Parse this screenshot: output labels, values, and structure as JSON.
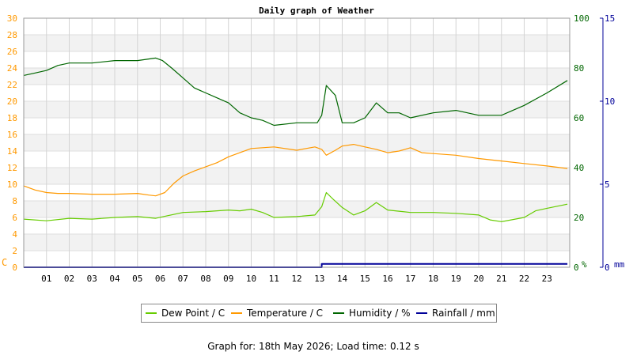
{
  "chart_data": {
    "type": "line",
    "title": "Daily graph of Weather",
    "xlabel": "",
    "x_ticks": [
      "01",
      "02",
      "03",
      "04",
      "05",
      "06",
      "07",
      "08",
      "09",
      "10",
      "11",
      "12",
      "13",
      "14",
      "15",
      "16",
      "17",
      "18",
      "19",
      "20",
      "21",
      "22",
      "23"
    ],
    "xlim": [
      0,
      24
    ],
    "axes": {
      "left": {
        "unit": "C",
        "ylim": [
          0,
          30
        ],
        "ticks": [
          0,
          2,
          4,
          6,
          8,
          10,
          12,
          14,
          16,
          18,
          20,
          22,
          24,
          26,
          28,
          30
        ],
        "color": "#ff9900"
      },
      "humidity": {
        "unit": "%",
        "ylim": [
          0,
          100
        ],
        "ticks": [
          0,
          20,
          40,
          60,
          80,
          100
        ],
        "color": "#006600"
      },
      "rain": {
        "unit": "mm",
        "ylim": [
          0,
          15
        ],
        "ticks": [
          0,
          5,
          10,
          15
        ],
        "color": "#000099"
      }
    },
    "series": [
      {
        "name": "Dew Point / C",
        "color": "#66cc00",
        "axis": "left",
        "x": [
          0,
          1,
          2,
          3,
          4,
          5,
          5.8,
          6.3,
          7,
          8,
          9,
          9.5,
          10,
          10.5,
          11,
          12,
          12.8,
          13.1,
          13.3,
          13.6,
          14,
          14.5,
          15,
          15.5,
          16,
          17,
          18,
          19,
          20,
          20.5,
          21,
          22,
          22.5,
          23,
          23.9
        ],
        "values": [
          5.8,
          5.6,
          5.9,
          5.8,
          6.0,
          6.1,
          5.9,
          6.2,
          6.6,
          6.7,
          6.9,
          6.8,
          7.0,
          6.6,
          6.0,
          6.1,
          6.3,
          7.3,
          9.0,
          8.2,
          7.2,
          6.3,
          6.8,
          7.8,
          6.9,
          6.6,
          6.6,
          6.5,
          6.3,
          5.7,
          5.5,
          6.0,
          6.8,
          7.1,
          7.6
        ]
      },
      {
        "name": "Temperature / C",
        "color": "#ff9900",
        "axis": "left",
        "x": [
          0,
          0.5,
          1,
          1.5,
          2,
          3,
          4,
          5,
          5.5,
          5.8,
          6.2,
          6.6,
          7,
          7.5,
          8,
          8.5,
          9,
          9.5,
          10,
          10.5,
          11,
          12,
          12.8,
          13.1,
          13.3,
          13.7,
          14,
          14.5,
          15,
          15.5,
          16,
          16.5,
          17,
          17.5,
          18,
          19,
          20,
          21,
          22,
          23,
          23.9
        ],
        "values": [
          9.8,
          9.3,
          9.0,
          8.9,
          8.9,
          8.8,
          8.8,
          8.9,
          8.7,
          8.6,
          9.0,
          10.1,
          11.0,
          11.6,
          12.1,
          12.6,
          13.3,
          13.8,
          14.3,
          14.4,
          14.5,
          14.1,
          14.5,
          14.2,
          13.5,
          14.1,
          14.6,
          14.8,
          14.5,
          14.2,
          13.8,
          14.0,
          14.4,
          13.8,
          13.7,
          13.5,
          13.1,
          12.8,
          12.5,
          12.2,
          11.9
        ]
      },
      {
        "name": "Humidity / %",
        "color": "#006600",
        "axis": "humidity",
        "x": [
          0,
          0.5,
          1,
          1.5,
          2,
          3,
          4,
          5,
          5.8,
          6.1,
          6.5,
          7,
          7.5,
          8,
          8.5,
          9,
          9.5,
          10,
          10.5,
          11,
          12,
          12.9,
          13.1,
          13.3,
          13.7,
          14,
          14.5,
          15,
          15.5,
          16,
          16.5,
          17,
          18,
          19,
          20,
          21,
          21.5,
          22,
          23,
          23.9
        ],
        "values": [
          77,
          78,
          79,
          81,
          82,
          82,
          83,
          83,
          84,
          83,
          80,
          76,
          72,
          70,
          68,
          66,
          62,
          60,
          59,
          57,
          58,
          58,
          61,
          73,
          69,
          58,
          58,
          60,
          66,
          62,
          62,
          60,
          62,
          63,
          61,
          61,
          63,
          65,
          70,
          75
        ]
      },
      {
        "name": "Rainfall / mm",
        "color": "#000099",
        "axis": "rain",
        "x": [
          0,
          13.1,
          13.1,
          23.9
        ],
        "values": [
          0,
          0,
          0.2,
          0.2
        ]
      }
    ],
    "grid": true,
    "legend": "bottom-center"
  },
  "footer": "Graph for: 18th May 2026; Load time: 0.12 s"
}
